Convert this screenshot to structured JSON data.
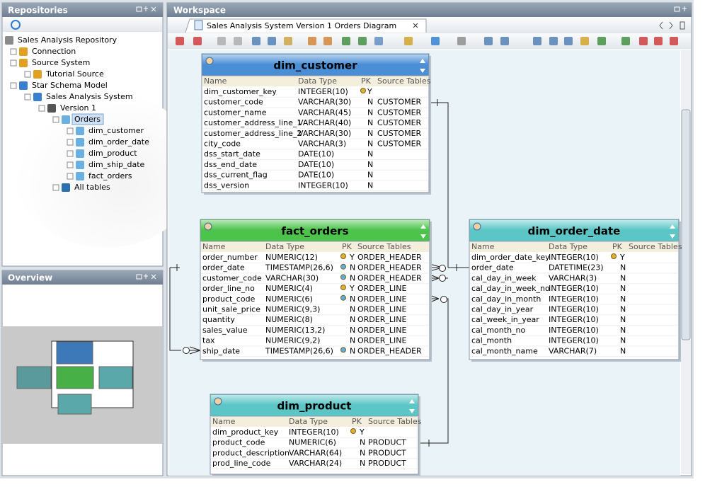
{
  "repositories": {
    "title": "Repositories",
    "tree": [
      {
        "label": "Sales Analysis Repository",
        "depth": 0
      },
      {
        "label": "Connection",
        "depth": 1
      },
      {
        "label": "Source System",
        "depth": 1
      },
      {
        "label": "Tutorial Source",
        "depth": 2
      },
      {
        "label": "Star Schema Model",
        "depth": 1
      },
      {
        "label": "Sales Analysis  System",
        "depth": 2
      },
      {
        "label": "Version 1",
        "depth": 3
      },
      {
        "label": "Orders",
        "depth": 4,
        "selected": true
      },
      {
        "label": "dim_customer",
        "depth": 5
      },
      {
        "label": "dim_order_date",
        "depth": 5
      },
      {
        "label": "dim_product",
        "depth": 5
      },
      {
        "label": "dim_ship_date",
        "depth": 5
      },
      {
        "label": "fact_orders",
        "depth": 5
      },
      {
        "label": "All tables",
        "depth": 4
      }
    ]
  },
  "overview": {
    "title": "Overview"
  },
  "workspace": {
    "title": "Workspace",
    "tab": "Sales Analysis  System Version 1 Orders Diagram",
    "column_headers": [
      "Name",
      "Data Type",
      "PK",
      "Source Tables"
    ],
    "entities": [
      {
        "title": "dim_customer",
        "color": "#4a8fd6",
        "rows": [
          {
            "name": "dim_customer_key",
            "type": "INTEGER(10)",
            "pk": "Y",
            "key": true
          },
          {
            "name": "customer_code",
            "type": "VARCHAR(30)",
            "pk": "N",
            "source": "CUSTOMER"
          },
          {
            "name": "customer_name",
            "type": "VARCHAR(45)",
            "pk": "N",
            "source": "CUSTOMER"
          },
          {
            "name": "customer_address_line_1",
            "type": "VARCHAR(40)",
            "pk": "N",
            "source": "CUSTOMER"
          },
          {
            "name": "customer_address_line_2",
            "type": "VARCHAR(30)",
            "pk": "N",
            "source": "CUSTOMER"
          },
          {
            "name": "city_code",
            "type": "VARCHAR(3)",
            "pk": "N",
            "source": "CUSTOMER"
          },
          {
            "name": "dss_start_date",
            "type": "DATE(10)",
            "pk": "N"
          },
          {
            "name": "dss_end_date",
            "type": "DATE(10)",
            "pk": "N"
          },
          {
            "name": "dss_current_flag",
            "type": "DATE(10)",
            "pk": "N"
          },
          {
            "name": "dss_version",
            "type": "INTEGER(10)",
            "pk": "N"
          }
        ]
      },
      {
        "title": "fact_orders",
        "color": "#4cc34a",
        "rows": [
          {
            "name": "order_number",
            "type": "NUMERIC(12)",
            "pk": "Y",
            "source": "ORDER_HEADER",
            "key": true
          },
          {
            "name": "order_date",
            "type": "TIMESTAMP(26,6)",
            "pk": "N",
            "source": "ORDER_HEADER",
            "key": true
          },
          {
            "name": "customer_code",
            "type": "VARCHAR(30)",
            "pk": "N",
            "source": "ORDER_HEADER",
            "key": true
          },
          {
            "name": "order_line_no",
            "type": "NUMERIC(4)",
            "pk": "Y",
            "source": "ORDER_LINE",
            "key": true
          },
          {
            "name": "product_code",
            "type": "NUMERIC(6)",
            "pk": "N",
            "source": "ORDER_LINE",
            "key": true
          },
          {
            "name": "unit_sale_price",
            "type": "NUMERIC(9,3)",
            "pk": "N",
            "source": "ORDER_LINE"
          },
          {
            "name": "quantity",
            "type": "NUMERIC(8)",
            "pk": "N",
            "source": "ORDER_LINE"
          },
          {
            "name": "sales_value",
            "type": "NUMERIC(13,2)",
            "pk": "N",
            "source": "ORDER_LINE"
          },
          {
            "name": "tax",
            "type": "NUMERIC(9,2)",
            "pk": "N",
            "source": "ORDER_LINE"
          },
          {
            "name": "ship_date",
            "type": "TIMESTAMP(26,6)",
            "pk": "N",
            "source": "ORDER_HEADER",
            "key": true
          }
        ]
      },
      {
        "title": "dim_order_date",
        "color": "#5cc6c6",
        "rows": [
          {
            "name": "dim_order_date_key",
            "type": "INTEGER(10)",
            "pk": "Y",
            "key": true
          },
          {
            "name": "order_date",
            "type": "DATETIME(23)",
            "pk": "N"
          },
          {
            "name": "cal_day_in_week",
            "type": "VARCHAR(3)",
            "pk": "N"
          },
          {
            "name": "cal_day_in_week_no",
            "type": "INTEGER(10)",
            "pk": "N"
          },
          {
            "name": "cal_day_in_month",
            "type": "INTEGER(10)",
            "pk": "N"
          },
          {
            "name": "cal_day_in_year",
            "type": "INTEGER(10)",
            "pk": "N"
          },
          {
            "name": "cal_week_in_year",
            "type": "INTEGER(10)",
            "pk": "N"
          },
          {
            "name": "cal_month_no",
            "type": "INTEGER(10)",
            "pk": "N"
          },
          {
            "name": "cal_month",
            "type": "INTEGER(10)",
            "pk": "N"
          },
          {
            "name": "cal_month_name",
            "type": "VARCHAR(7)",
            "pk": "N"
          }
        ]
      },
      {
        "title": "dim_product",
        "color": "#5cc6c6",
        "rows": [
          {
            "name": "dim_product_key",
            "type": "INTEGER(10)",
            "pk": "Y",
            "key": true
          },
          {
            "name": "product_code",
            "type": "NUMERIC(6)",
            "pk": "N",
            "source": "PRODUCT"
          },
          {
            "name": "product_description",
            "type": "VARCHAR(64)",
            "pk": "N",
            "source": "PRODUCT"
          },
          {
            "name": "prod_line_code",
            "type": "VARCHAR(24)",
            "pk": "N",
            "source": "PRODUCT"
          }
        ]
      }
    ]
  }
}
